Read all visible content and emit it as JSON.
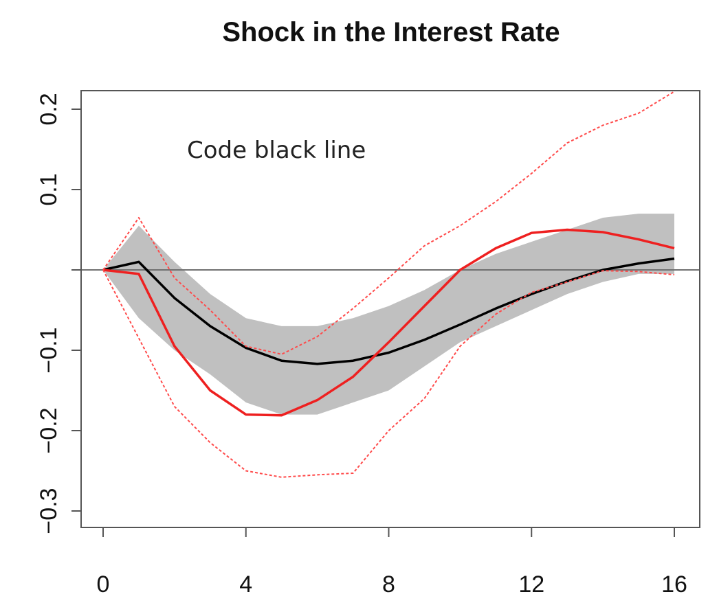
{
  "chart_data": {
    "type": "line",
    "title": "Shock in the Interest Rate",
    "annotation": "Code black line",
    "xlabel": "",
    "ylabel": "",
    "xlim": [
      0,
      16
    ],
    "ylim": [
      -0.32,
      0.21
    ],
    "x_ticks": [
      0,
      4,
      8,
      12,
      16
    ],
    "y_ticks": [
      -0.3,
      -0.2,
      -0.1,
      0,
      0.1,
      0.2
    ],
    "x_tick_labels": [
      "0",
      "4",
      "8",
      "12",
      "16"
    ],
    "y_tick_labels": [
      "−0.3",
      "−0.2",
      "−0.1",
      "",
      "0.1",
      "0.2"
    ],
    "reference_line_y": 0,
    "grid": false,
    "x": [
      0,
      1,
      2,
      3,
      4,
      5,
      6,
      7,
      8,
      9,
      10,
      11,
      12,
      13,
      14,
      15,
      16
    ],
    "band": {
      "color": "#c0c0c0",
      "upper": [
        0.0,
        0.055,
        0.01,
        -0.03,
        -0.06,
        -0.07,
        -0.07,
        -0.06,
        -0.045,
        -0.025,
        0.0,
        0.02,
        0.035,
        0.05,
        0.065,
        0.07,
        0.07
      ],
      "lower": [
        0.0,
        -0.06,
        -0.1,
        -0.13,
        -0.165,
        -0.18,
        -0.18,
        -0.165,
        -0.15,
        -0.12,
        -0.09,
        -0.07,
        -0.05,
        -0.03,
        -0.015,
        -0.005,
        -0.005
      ]
    },
    "series": [
      {
        "color": "#000000",
        "style": "solid",
        "values": [
          0.0,
          0.01,
          -0.035,
          -0.07,
          -0.097,
          -0.113,
          -0.117,
          -0.113,
          -0.103,
          -0.087,
          -0.068,
          -0.048,
          -0.03,
          -0.014,
          0.0,
          0.008,
          0.014
        ]
      },
      {
        "color": "#ee2020",
        "style": "solid",
        "values": [
          0.0,
          -0.005,
          -0.095,
          -0.15,
          -0.18,
          -0.181,
          -0.162,
          -0.133,
          -0.09,
          -0.045,
          0.0,
          0.027,
          0.046,
          0.05,
          0.047,
          0.038,
          0.027
        ]
      },
      {
        "color": "#ff4a4a",
        "style": "dashed",
        "values": [
          0.0,
          0.065,
          -0.01,
          -0.05,
          -0.095,
          -0.105,
          -0.083,
          -0.048,
          -0.01,
          0.03,
          0.055,
          0.085,
          0.12,
          0.158,
          0.18,
          0.195,
          0.222
        ]
      },
      {
        "color": "#ff4a4a",
        "style": "dashed",
        "values": [
          0.0,
          -0.085,
          -0.17,
          -0.215,
          -0.25,
          -0.258,
          -0.255,
          -0.253,
          -0.2,
          -0.16,
          -0.095,
          -0.055,
          -0.028,
          -0.015,
          -0.001,
          -0.002,
          -0.006
        ]
      }
    ]
  }
}
